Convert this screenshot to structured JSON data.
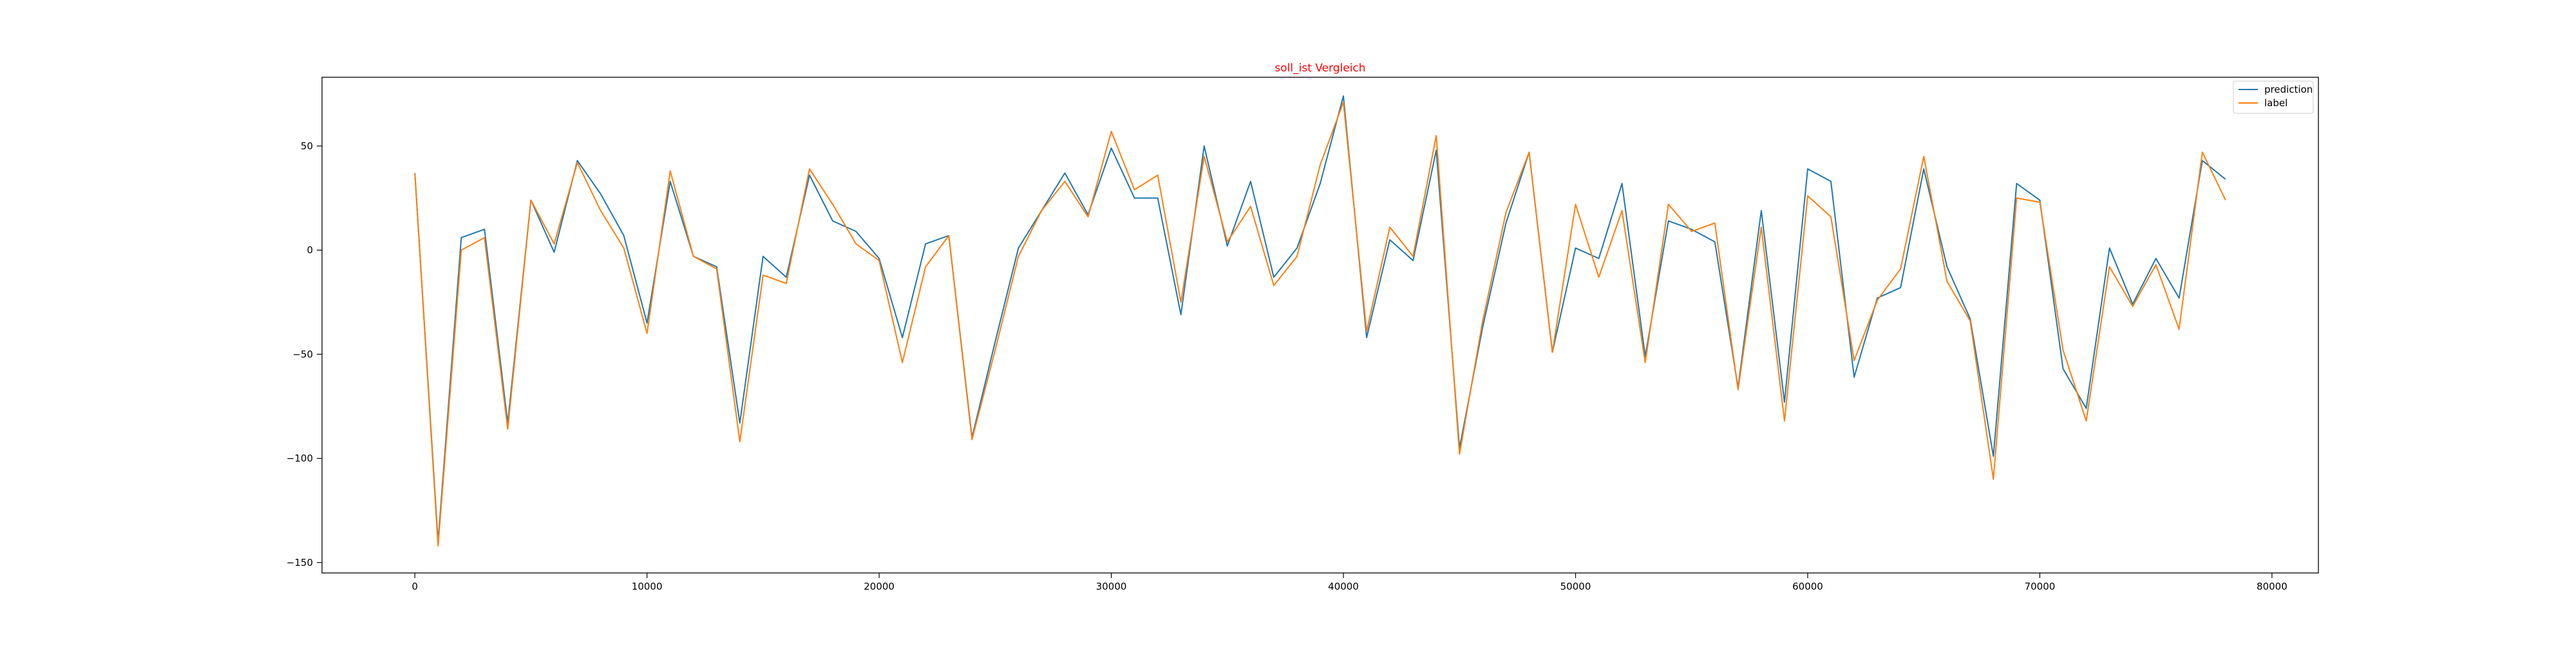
{
  "chart_data": {
    "type": "line",
    "title": "soll_ist Vergleich",
    "xlabel": "",
    "ylabel": "",
    "xlim": [
      -4000,
      82000
    ],
    "ylim": [
      -155,
      83
    ],
    "grid": false,
    "legend_position": "top-right",
    "x_ticks": [
      0,
      10000,
      20000,
      30000,
      40000,
      50000,
      60000,
      70000,
      80000
    ],
    "x_tick_labels": [
      "0",
      "10000",
      "20000",
      "30000",
      "40000",
      "50000",
      "60000",
      "70000",
      "80000"
    ],
    "y_ticks": [
      50,
      0,
      -50,
      -100,
      -150
    ],
    "y_tick_labels": [
      "50",
      "0",
      "−50",
      "−100",
      "−150"
    ],
    "x": [
      0,
      1000,
      2000,
      3000,
      4000,
      5000,
      6000,
      7000,
      8000,
      9000,
      10000,
      11000,
      12000,
      13000,
      14000,
      15000,
      16000,
      17000,
      18000,
      19000,
      20000,
      21000,
      22000,
      23000,
      24000,
      25000,
      26000,
      27000,
      28000,
      29000,
      30000,
      31000,
      32000,
      33000,
      34000,
      35000,
      36000,
      37000,
      38000,
      39000,
      40000,
      41000,
      42000,
      43000,
      44000,
      45000,
      46000,
      47000,
      48000,
      49000,
      50000,
      51000,
      52000,
      53000,
      54000,
      55000,
      56000,
      57000,
      58000,
      59000,
      60000,
      61000,
      62000,
      63000,
      64000,
      65000,
      66000,
      67000,
      68000,
      69000,
      70000,
      71000,
      72000,
      73000,
      74000,
      75000,
      76000,
      77000,
      78000
    ],
    "series": [
      {
        "name": "prediction",
        "color": "#1f77b4",
        "values": [
          37,
          -140,
          6,
          10,
          -83,
          24,
          -1,
          43,
          27,
          7,
          -35,
          33,
          -3,
          -8,
          -83,
          -3,
          -13,
          36,
          14,
          9,
          -4,
          -42,
          3,
          7,
          -90,
          -44,
          1,
          19,
          37,
          17,
          49,
          25,
          25,
          -31,
          50,
          2,
          33,
          -13,
          1,
          32,
          74,
          -42,
          5,
          -5,
          48,
          -95,
          -37,
          13,
          47,
          -49,
          1,
          -4,
          32,
          -51,
          14,
          10,
          4,
          -66,
          19,
          -73,
          39,
          33,
          -61,
          -23,
          -18,
          39,
          -8,
          -33,
          -99,
          32,
          24,
          -57,
          -76,
          1,
          -26,
          -4,
          -23,
          43,
          34
        ]
      },
      {
        "name": "label",
        "color": "#ff7f0e",
        "values": [
          37,
          -142,
          0,
          6,
          -86,
          24,
          3,
          42,
          19,
          1,
          -40,
          38,
          -3,
          -9,
          -92,
          -12,
          -16,
          39,
          22,
          3,
          -5,
          -54,
          -8,
          7,
          -91,
          -48,
          -3,
          19,
          33,
          16,
          57,
          29,
          36,
          -25,
          45,
          4,
          21,
          -17,
          -3,
          41,
          71,
          -39,
          11,
          -3,
          55,
          -98,
          -34,
          18,
          47,
          -49,
          22,
          -13,
          19,
          -54,
          22,
          9,
          13,
          -67,
          11,
          -82,
          26,
          16,
          -53,
          -24,
          -9,
          45,
          -15,
          -34,
          -110,
          25,
          23,
          -48,
          -82,
          -8,
          -27,
          -7,
          -38,
          47,
          24
        ]
      }
    ]
  }
}
